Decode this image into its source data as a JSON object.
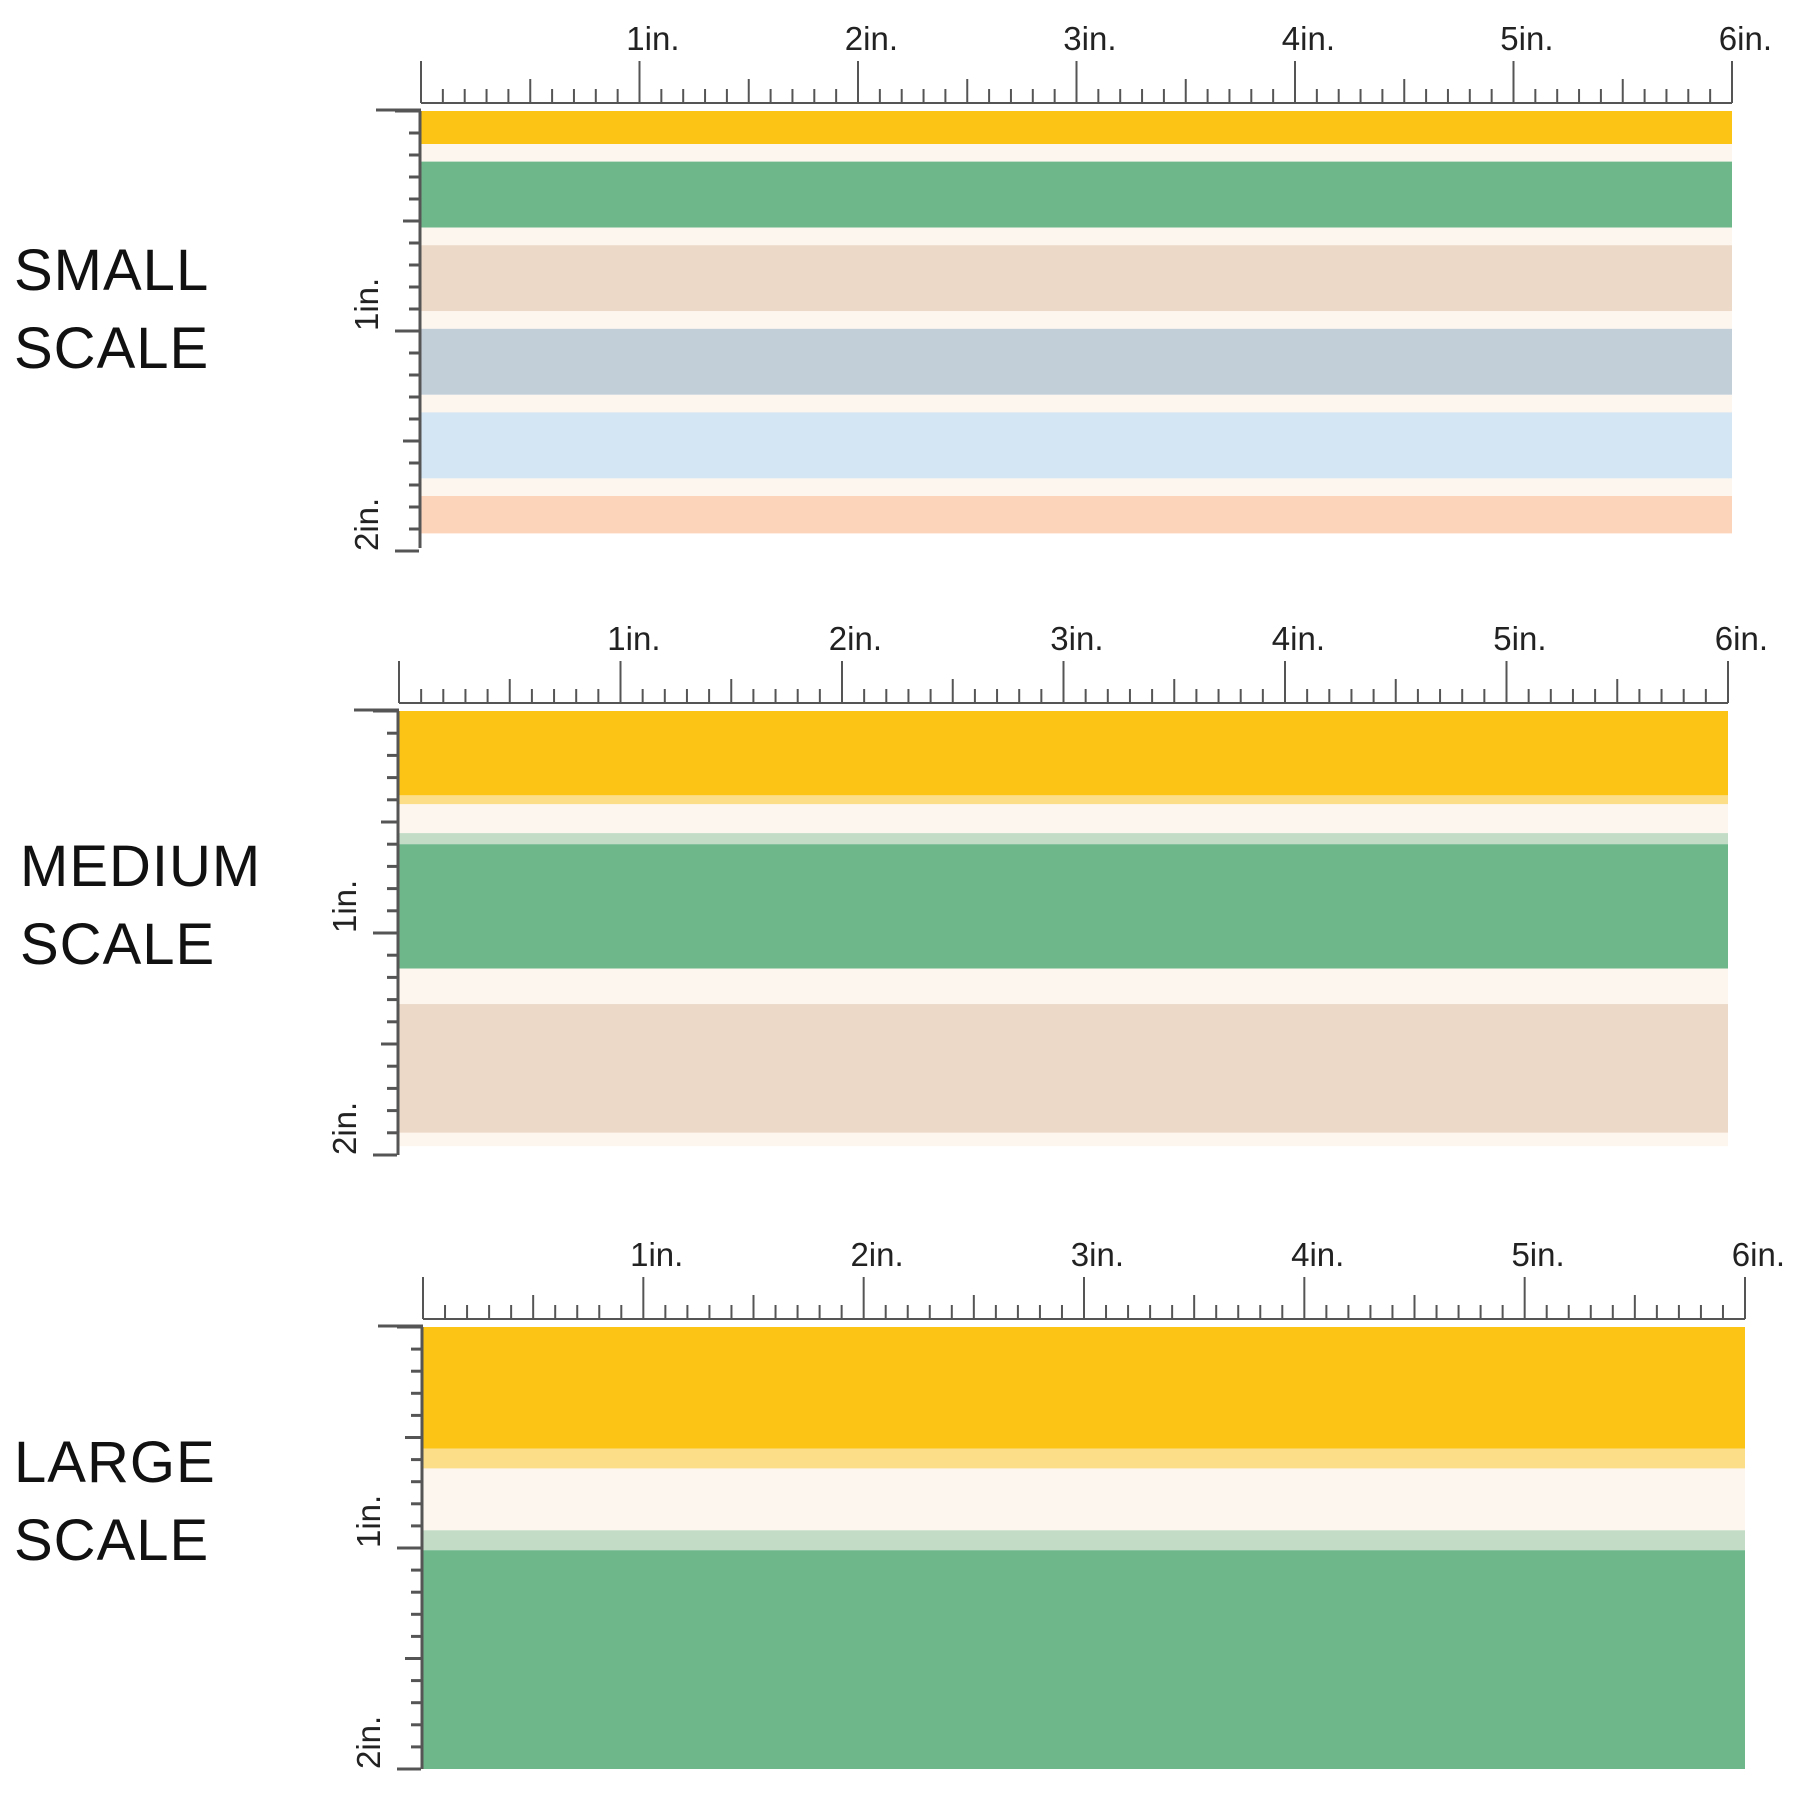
{
  "panels": [
    {
      "label_line1": "SMALL",
      "label_line2": "SCALE",
      "h_labels": [
        "1in.",
        "2in.",
        "3in.",
        "4in.",
        "5in.",
        "6in."
      ],
      "v_labels": [
        "1in.",
        "2in."
      ],
      "stripes": [
        {
          "color": "#FCC415",
          "height": 0.15
        },
        {
          "color": "#FDF6EE",
          "height": 0.08
        },
        {
          "color": "#6EB78B",
          "height": 0.3
        },
        {
          "color": "#FDF6EE",
          "height": 0.08
        },
        {
          "color": "#ECD9C8",
          "height": 0.3
        },
        {
          "color": "#FDF6EE",
          "height": 0.08
        },
        {
          "color": "#C2CFD9",
          "height": 0.3
        },
        {
          "color": "#FDF6EE",
          "height": 0.08
        },
        {
          "color": "#D4E6F3",
          "height": 0.3
        },
        {
          "color": "#FDF6EE",
          "height": 0.08
        },
        {
          "color": "#FCD4BA",
          "height": 0.17
        }
      ]
    },
    {
      "label_line1": "MEDIUM",
      "label_line2": "SCALE",
      "h_labels": [
        "1in.",
        "2in.",
        "3in.",
        "4in.",
        "5in.",
        "6in."
      ],
      "v_labels": [
        "1in.",
        "2in."
      ],
      "stripes": [
        {
          "color": "#FCC415",
          "height": 0.38
        },
        {
          "color": "#FCDE88",
          "height": 0.04
        },
        {
          "color": "#FDF6EE",
          "height": 0.13
        },
        {
          "color": "#C2DCC6",
          "height": 0.05
        },
        {
          "color": "#6EB78B",
          "height": 0.56
        },
        {
          "color": "#FDF6EE",
          "height": 0.16
        },
        {
          "color": "#ECD9C8",
          "height": 0.58
        },
        {
          "color": "#FDF6EE",
          "height": 0.06
        }
      ]
    },
    {
      "label_line1": "LARGE",
      "label_line2": "SCALE",
      "h_labels": [
        "1in.",
        "2in.",
        "3in.",
        "4in.",
        "5in.",
        "6in."
      ],
      "v_labels": [
        "1in.",
        "2in."
      ],
      "stripes": [
        {
          "color": "#FCC415",
          "height": 0.55
        },
        {
          "color": "#FCDE88",
          "height": 0.09
        },
        {
          "color": "#FDF6EE",
          "height": 0.28
        },
        {
          "color": "#C2DCC6",
          "height": 0.09
        },
        {
          "color": "#6EB78B",
          "height": 0.99
        }
      ]
    }
  ]
}
